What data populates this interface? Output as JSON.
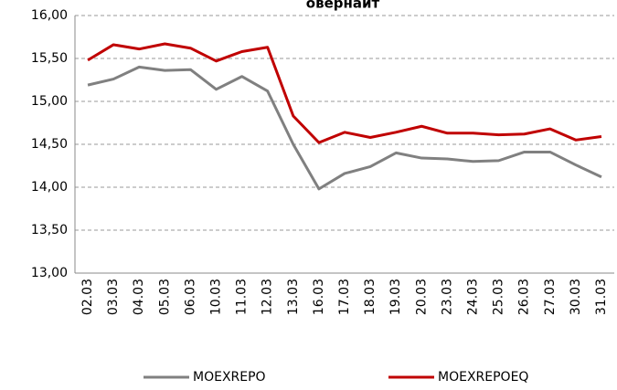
{
  "chart_data": {
    "type": "line",
    "title": "овернайт",
    "categories": [
      "02.03",
      "03.03",
      "04.03",
      "05.03",
      "06.03",
      "10.03",
      "11.03",
      "12.03",
      "13.03",
      "16.03",
      "17.03",
      "18.03",
      "19.03",
      "20.03",
      "23.03",
      "24.03",
      "25.03",
      "26.03",
      "27.03",
      "30.03",
      "31.03"
    ],
    "series": [
      {
        "name": "MOEXREPO",
        "color": "#808080",
        "values": [
          15.19,
          15.26,
          15.4,
          15.36,
          15.37,
          15.14,
          15.29,
          15.12,
          14.5,
          13.98,
          14.16,
          14.24,
          14.4,
          14.34,
          14.33,
          14.3,
          14.31,
          14.41,
          14.41,
          14.26,
          14.12
        ]
      },
      {
        "name": "MOEXREPOEQ",
        "color": "#c00000",
        "values": [
          15.48,
          15.66,
          15.61,
          15.67,
          15.62,
          15.47,
          15.58,
          15.63,
          14.83,
          14.52,
          14.64,
          14.58,
          14.64,
          14.71,
          14.63,
          14.63,
          14.61,
          14.62,
          14.68,
          14.55,
          14.59
        ]
      }
    ],
    "ylim": [
      13,
      16
    ],
    "yticks": [
      {
        "value": 13,
        "label": "13,00"
      },
      {
        "value": 13.5,
        "label": "13,50"
      },
      {
        "value": 14,
        "label": "14,00"
      },
      {
        "value": 14.5,
        "label": "14,50"
      },
      {
        "value": 15,
        "label": "15,00"
      },
      {
        "value": 15.5,
        "label": "15,50"
      },
      {
        "value": 16,
        "label": "16,00"
      }
    ],
    "grid": true,
    "legend": "bottom"
  }
}
